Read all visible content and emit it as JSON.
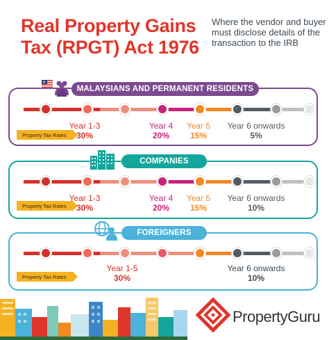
{
  "title": {
    "line1": "Real Property Gains",
    "line2": "Tax (RPGT) Act 1976"
  },
  "subtitle": "Where the vendor and buyer must disclose details of the transaction to the IRB",
  "rates_label": "Property Tax Rates",
  "colors": {
    "red": "#d6302a",
    "magenta": "#c7237a",
    "orange": "#f08a24",
    "grey": "#555c63",
    "purple": "#7c4a8f",
    "teal": "#14a69c",
    "blue": "#4bb2da"
  },
  "sections": [
    {
      "heading": "MALAYSIANS AND PERMANENT RESIDENTS",
      "icon": "malaysia-flag-people-icon",
      "periods": [
        {
          "label": "Year 1-3",
          "rate": "30%"
        },
        {
          "label": "Year 4",
          "rate": "20%"
        },
        {
          "label": "Year 5",
          "rate": "15%"
        },
        {
          "label": "Year 6 onwards",
          "rate": "5%"
        }
      ]
    },
    {
      "heading": "COMPANIES",
      "icon": "buildings-icon",
      "periods": [
        {
          "label": "Year 1-3",
          "rate": "30%"
        },
        {
          "label": "Year 4",
          "rate": "20%"
        },
        {
          "label": "Year 5",
          "rate": "15%"
        },
        {
          "label": "Year 6 onwards",
          "rate": "10%"
        }
      ]
    },
    {
      "heading": "FOREIGNERS",
      "icon": "globe-person-icon",
      "periods": [
        {
          "label": "Year 1-5",
          "rate": "30%"
        },
        {
          "label": "Year 6 onwards",
          "rate": "10%"
        }
      ]
    }
  ],
  "brand": {
    "name": "PropertyGuru",
    "icon": "propertyguru-logo-icon"
  }
}
